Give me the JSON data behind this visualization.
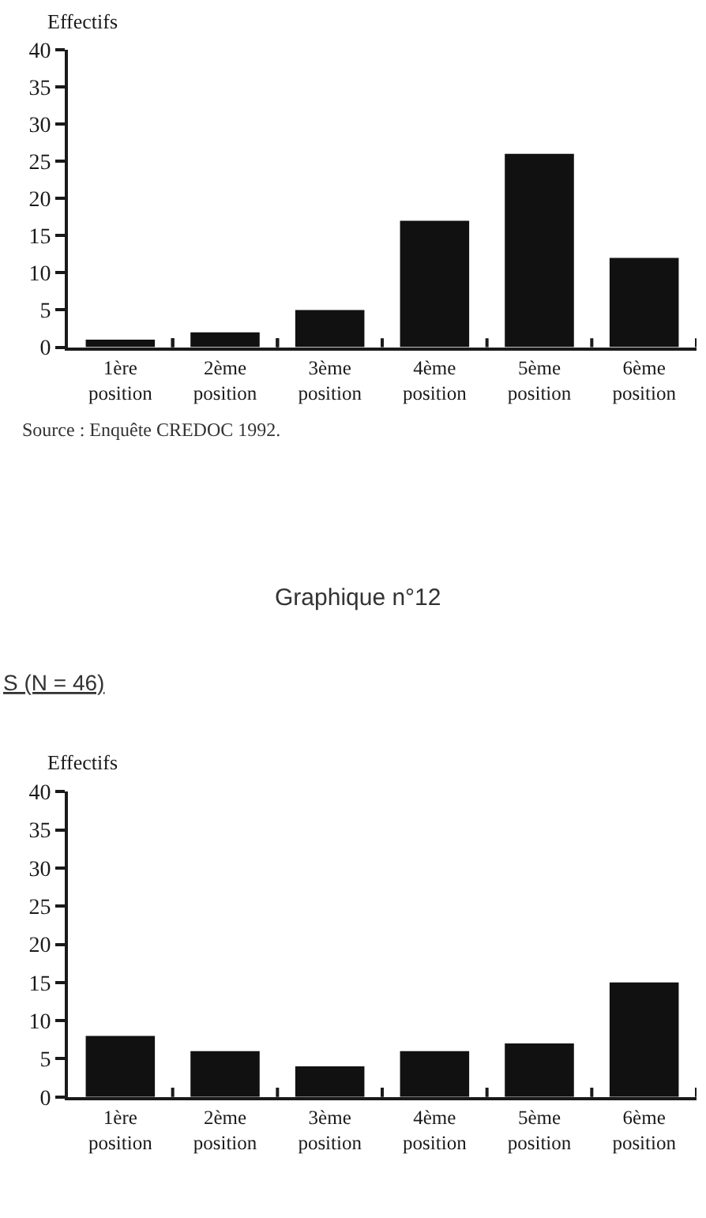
{
  "chart_data": [
    {
      "type": "bar",
      "ylabel": "Effectifs",
      "categories": [
        "1ère position",
        "2ème position",
        "3ème position",
        "4ème position",
        "5ème position",
        "6ème position"
      ],
      "values": [
        1,
        2,
        5,
        17,
        26,
        12
      ],
      "color": "#111111",
      "ylim": [
        0,
        40
      ],
      "yticks": [
        0,
        5,
        10,
        15,
        20,
        25,
        30,
        35,
        40
      ],
      "annotations": [
        "Source : Enquête CREDOC 1992."
      ]
    },
    {
      "type": "bar",
      "title": "Graphique n°12",
      "subtitle": "S (N = 46)",
      "ylabel": "Effectifs",
      "categories": [
        "1ère position",
        "2ème position",
        "3ème position",
        "4ème position",
        "5ème position",
        "6ème position"
      ],
      "values": [
        8,
        6,
        4,
        6,
        7,
        15
      ],
      "color": "#111111",
      "ylim": [
        0,
        40
      ],
      "yticks": [
        0,
        5,
        10,
        15,
        20,
        25,
        30,
        35,
        40
      ]
    }
  ]
}
